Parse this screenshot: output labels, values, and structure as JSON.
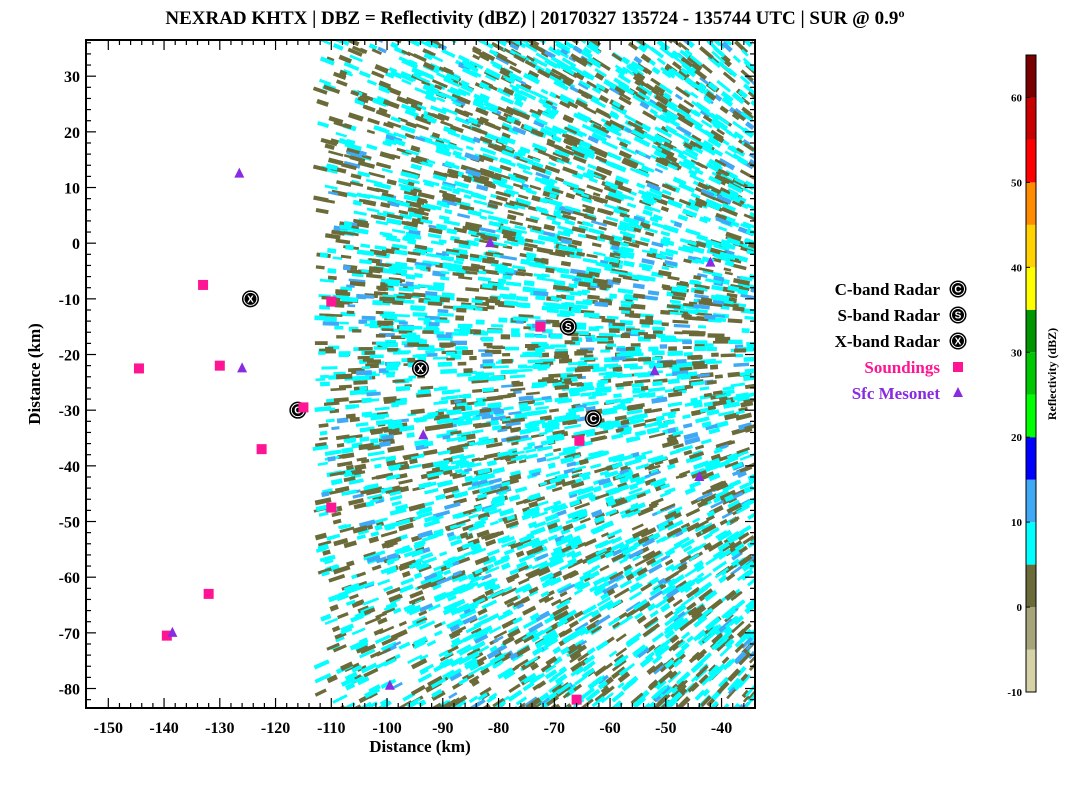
{
  "chart_data": {
    "type": "scatter",
    "title": "NEXRAD KHTX | DBZ = Reflectivity (dBZ) | 20170327 135724 - 135744 UTC | SUR @ 0.9º",
    "xlabel": "Distance (km)",
    "ylabel": "Distance (km)",
    "xlim": [
      -154,
      -34
    ],
    "ylim": [
      -83.5,
      36.5
    ],
    "xticks": [
      -150,
      -140,
      -130,
      -120,
      -110,
      -100,
      -90,
      -80,
      -70,
      -60,
      -50,
      -40
    ],
    "yticks": [
      30,
      20,
      10,
      0,
      -10,
      -20,
      -30,
      -40,
      -50,
      -60,
      -70,
      -80
    ],
    "legend_position": "right",
    "series": [
      {
        "name": "C-band Radar",
        "marker": "circle-C",
        "color": "#000000",
        "points": [
          [
            -116,
            -30
          ],
          [
            -63,
            -31.5
          ]
        ]
      },
      {
        "name": "S-band Radar",
        "marker": "circle-S",
        "color": "#000000",
        "points": [
          [
            -67.5,
            -15
          ]
        ]
      },
      {
        "name": "X-band Radar",
        "marker": "circle-X",
        "color": "#000000",
        "points": [
          [
            -124.5,
            -10
          ],
          [
            -94,
            -22.5
          ]
        ]
      },
      {
        "name": "Soundings",
        "marker": "square",
        "color": "#ff1493",
        "points": [
          [
            -133,
            -7.5
          ],
          [
            -110,
            -10.5
          ],
          [
            -130,
            -22
          ],
          [
            -144.5,
            -22.5
          ],
          [
            -115,
            -29.5
          ],
          [
            -122.5,
            -37
          ],
          [
            -110,
            -47.5
          ],
          [
            -132,
            -63
          ],
          [
            -139.5,
            -70.5
          ],
          [
            -72.5,
            -15
          ],
          [
            -65.5,
            -35.5
          ],
          [
            -66,
            -82
          ]
        ]
      },
      {
        "name": "Sfc Mesonet",
        "marker": "triangle",
        "color": "#8a2be2",
        "points": [
          [
            -126.5,
            12.5
          ],
          [
            -81.5,
            0
          ],
          [
            -126,
            -22.5
          ],
          [
            -93.5,
            -34.5
          ],
          [
            -138.5,
            -70
          ],
          [
            -99.5,
            -79.5
          ],
          [
            -42,
            -3.5
          ],
          [
            -52,
            -23
          ],
          [
            -44,
            -42
          ]
        ]
      }
    ],
    "reflectivity_field": {
      "description": "radar reflectivity echoes covering east half of domain",
      "dominant_colors": [
        "#6b6b3a",
        "#00ffff",
        "#3fa9f5"
      ]
    },
    "colorbar": {
      "title": "Reflectivity (dBZ)",
      "range": [
        -10,
        65
      ],
      "ticks": [
        -10,
        0,
        10,
        20,
        30,
        40,
        50,
        60
      ],
      "bins": [
        {
          "from": -10,
          "to": -5,
          "color": "#d6d2a8"
        },
        {
          "from": -5,
          "to": 0,
          "color": "#a6a47a"
        },
        {
          "from": 0,
          "to": 5,
          "color": "#6b6b3a"
        },
        {
          "from": 5,
          "to": 10,
          "color": "#00ffff"
        },
        {
          "from": 10,
          "to": 15,
          "color": "#3fa9f5"
        },
        {
          "from": 15,
          "to": 20,
          "color": "#0000ff"
        },
        {
          "from": 20,
          "to": 25,
          "color": "#00ff00"
        },
        {
          "from": 25,
          "to": 30,
          "color": "#00c800"
        },
        {
          "from": 30,
          "to": 35,
          "color": "#009600"
        },
        {
          "from": 35,
          "to": 40,
          "color": "#ffff00"
        },
        {
          "from": 40,
          "to": 45,
          "color": "#ffd200"
        },
        {
          "from": 45,
          "to": 50,
          "color": "#ff8c00"
        },
        {
          "from": 50,
          "to": 55,
          "color": "#ff0000"
        },
        {
          "from": 55,
          "to": 60,
          "color": "#c80000"
        },
        {
          "from": 60,
          "to": 65,
          "color": "#7a0000"
        }
      ]
    }
  }
}
